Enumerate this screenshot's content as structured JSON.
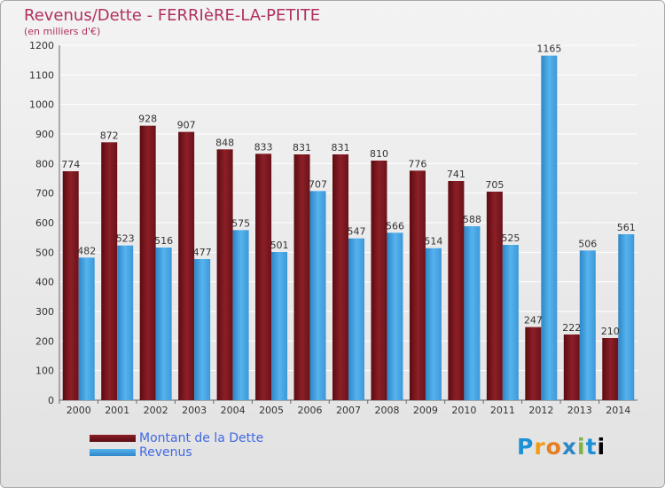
{
  "page": {
    "title": "Revenus/Dette - FERRIèRE-LA-PETITE",
    "subtitle": "(en milliers d'€)",
    "logo_text": "Proxiti"
  },
  "colors": {
    "title": "#b03060",
    "debt_top": "#8c1f28",
    "debt_bottom": "#5a0b10",
    "revenue_top": "#55b3ee",
    "revenue_bottom": "#2e86c7",
    "legend_text": "#4169e1"
  },
  "legend": {
    "items": [
      {
        "label": "Montant de la Dette",
        "swatch": "debt"
      },
      {
        "label": "Revenus",
        "swatch": "revenue"
      }
    ]
  },
  "chart_data": {
    "type": "bar",
    "categories": [
      "2000",
      "2001",
      "2002",
      "2003",
      "2004",
      "2005",
      "2006",
      "2007",
      "2008",
      "2009",
      "2010",
      "2011",
      "2012",
      "2013",
      "2014"
    ],
    "series": [
      {
        "name": "Montant de la Dette",
        "values": [
          774,
          872,
          928,
          907,
          848,
          833,
          831,
          831,
          810,
          776,
          741,
          705,
          247,
          222,
          210
        ]
      },
      {
        "name": "Revenus",
        "values": [
          482,
          523,
          516,
          477,
          575,
          501,
          707,
          547,
          566,
          514,
          588,
          525,
          1165,
          506,
          561
        ]
      }
    ],
    "ylim": [
      0,
      1200
    ],
    "yticks": [
      0,
      100,
      200,
      300,
      400,
      500,
      600,
      700,
      800,
      900,
      1000,
      1100,
      1200
    ],
    "grid": true,
    "legend_position": "bottom-left"
  }
}
